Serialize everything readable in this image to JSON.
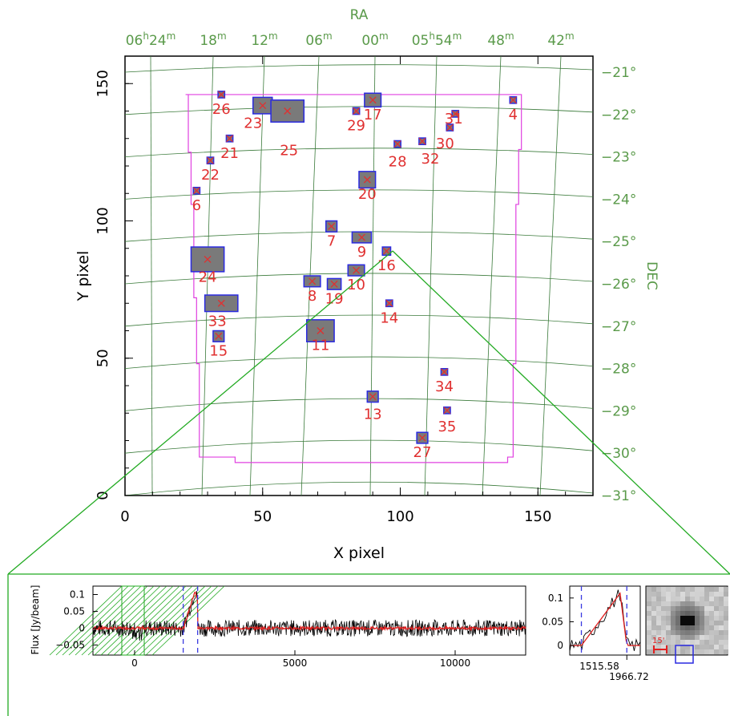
{
  "main_plot": {
    "xlabel": "X pixel",
    "ylabel": "Y pixel",
    "ra_label": "RA",
    "dec_label": "DEC",
    "x_ticks": [
      "0",
      "50",
      "100",
      "150"
    ],
    "y_ticks": [
      "0",
      "50",
      "100",
      "150"
    ],
    "ra_ticks": [
      {
        "h": "06",
        "hs": "h",
        "m": "24",
        "ms": "m"
      },
      {
        "h": "",
        "hs": "",
        "m": "18",
        "ms": "m"
      },
      {
        "h": "",
        "hs": "",
        "m": "12",
        "ms": "m"
      },
      {
        "h": "",
        "hs": "",
        "m": "06",
        "ms": "m"
      },
      {
        "h": "",
        "hs": "",
        "m": "00",
        "ms": "m"
      },
      {
        "h": "05",
        "hs": "h",
        "m": "54",
        "ms": "m"
      },
      {
        "h": "",
        "hs": "",
        "m": "48",
        "ms": "m"
      },
      {
        "h": "",
        "hs": "",
        "m": "42",
        "ms": "m"
      }
    ],
    "dec_ticks": [
      "−21°",
      "−22°",
      "−23°",
      "−24°",
      "−25°",
      "−26°",
      "−27°",
      "−28°",
      "−29°",
      "−30°",
      "−31°"
    ],
    "colors": {
      "grid": "#3a7a3a",
      "coverage": "#e040e0",
      "source_fill": "#7a7a7a",
      "source_edge": "#2a2ae0",
      "label": "#e03030",
      "axis_text_green": "#5a9a4a",
      "zoom_lines": "#22aa22"
    }
  },
  "chart_data": [
    {
      "type": "scatter",
      "title": "",
      "xlabel": "X pixel",
      "ylabel": "Y pixel",
      "xlim": [
        0,
        170
      ],
      "ylim": [
        0,
        160
      ],
      "series": [
        {
          "name": "",
          "points": [
            {
              "id": "4",
              "x": 141,
              "y": 144
            },
            {
              "id": "6",
              "x": 26,
              "y": 111
            },
            {
              "id": "7",
              "x": 75,
              "y": 98
            },
            {
              "id": "8",
              "x": 68,
              "y": 78
            },
            {
              "id": "9",
              "x": 86,
              "y": 94
            },
            {
              "id": "10",
              "x": 84,
              "y": 82
            },
            {
              "id": "11",
              "x": 71,
              "y": 60
            },
            {
              "id": "13",
              "x": 90,
              "y": 36
            },
            {
              "id": "14",
              "x": 96,
              "y": 70
            },
            {
              "id": "15",
              "x": 34,
              "y": 58
            },
            {
              "id": "16",
              "x": 95,
              "y": 89
            },
            {
              "id": "17",
              "x": 90,
              "y": 144
            },
            {
              "id": "19",
              "x": 76,
              "y": 77
            },
            {
              "id": "20",
              "x": 88,
              "y": 115
            },
            {
              "id": "21",
              "x": 38,
              "y": 130
            },
            {
              "id": "22",
              "x": 31,
              "y": 122
            },
            {
              "id": "23",
              "x": 50,
              "y": 142
            },
            {
              "id": "24",
              "x": 30,
              "y": 86
            },
            {
              "id": "25",
              "x": 59,
              "y": 140
            },
            {
              "id": "26",
              "x": 35,
              "y": 146
            },
            {
              "id": "27",
              "x": 108,
              "y": 21
            },
            {
              "id": "28",
              "x": 99,
              "y": 128
            },
            {
              "id": "29",
              "x": 84,
              "y": 140
            },
            {
              "id": "30",
              "x": 118,
              "y": 134
            },
            {
              "id": "31",
              "x": 120,
              "y": 139
            },
            {
              "id": "32",
              "x": 108,
              "y": 129
            },
            {
              "id": "33",
              "x": 35,
              "y": 70
            },
            {
              "id": "34",
              "x": 116,
              "y": 45
            },
            {
              "id": "35",
              "x": 117,
              "y": 31
            }
          ]
        }
      ]
    },
    {
      "type": "line",
      "title": "",
      "xlabel": "",
      "ylabel": "Flux [Jy/beam]",
      "xlim": [
        -1300,
        12200
      ],
      "ylim": [
        -0.08,
        0.125
      ],
      "x_ticks": [
        "0",
        "5000",
        "10000"
      ],
      "y_ticks": [
        "0.1",
        "0.05",
        "0",
        "−0.05"
      ],
      "series": [
        {
          "name": "",
          "color": "#000000",
          "description_values": [
            [
              -1300,
              0.0
            ],
            [
              1515.58,
              0.0
            ],
            [
              1700,
              0.05
            ],
            [
              1850,
              0.11
            ],
            [
              1966.72,
              0.0
            ],
            [
              12200,
              0.0
            ]
          ]
        },
        {
          "name": "",
          "color": "#e02020",
          "description_values": [
            [
              -1300,
              0.0
            ],
            [
              1515.58,
              0.0
            ],
            [
              1800,
              0.1
            ],
            [
              1966.72,
              0.0
            ],
            [
              12200,
              0.0
            ]
          ]
        }
      ],
      "vlines": [
        1515.58,
        1966.72
      ]
    },
    {
      "type": "line",
      "title": "",
      "xlim": [
        1400,
        2100
      ],
      "ylim": [
        -0.02,
        0.125
      ],
      "x_ticks": [
        "1515.58",
        "1966.72"
      ],
      "y_ticks": [
        "0.1",
        "0.05",
        "0"
      ]
    }
  ],
  "thumb": {
    "scale_label": "15'"
  }
}
